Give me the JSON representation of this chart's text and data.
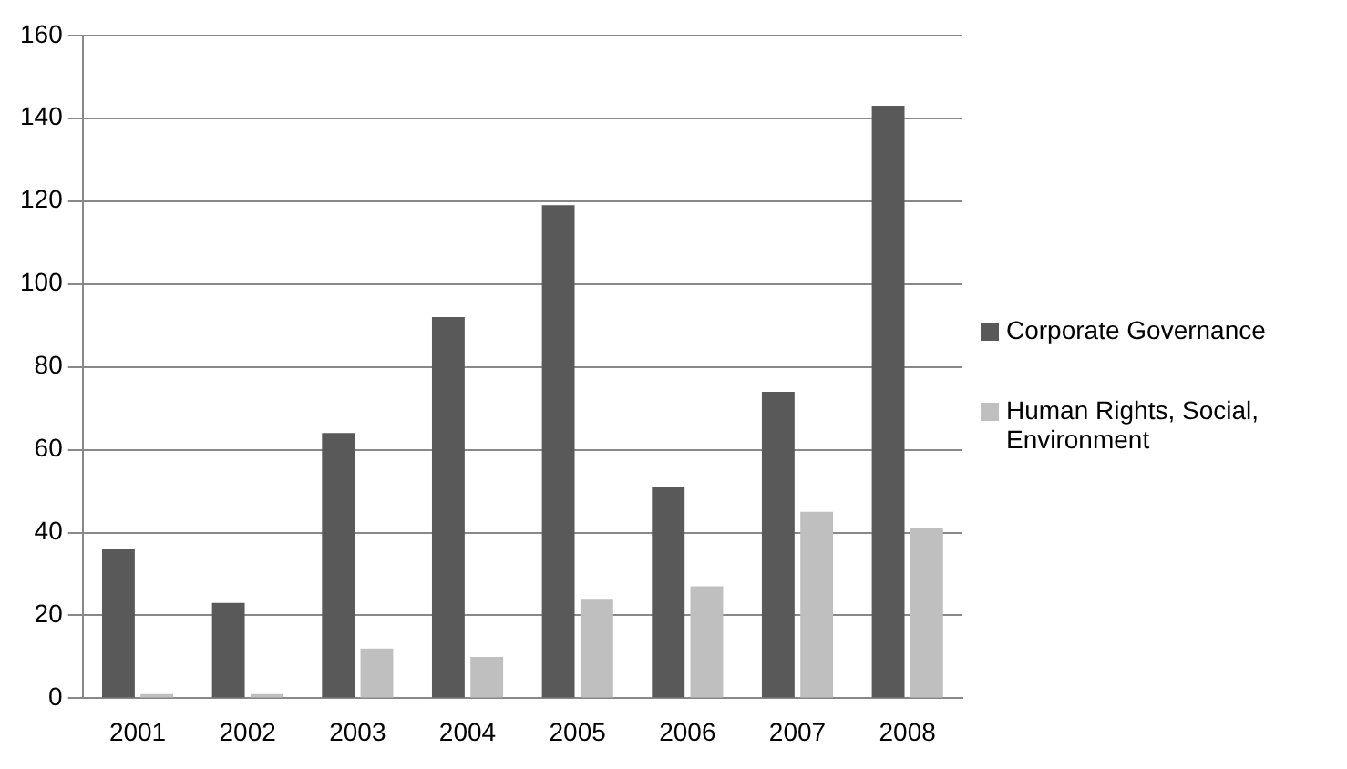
{
  "chart_data": {
    "type": "bar",
    "categories": [
      "2001",
      "2002",
      "2003",
      "2004",
      "2005",
      "2006",
      "2007",
      "2008"
    ],
    "series": [
      {
        "name": "Corporate Governance",
        "color": "#595959",
        "values": [
          36,
          23,
          64,
          92,
          119,
          51,
          74,
          143
        ]
      },
      {
        "name": "Human Rights, Social, Environment",
        "color": "#bfbfbf",
        "values": [
          1,
          1,
          12,
          10,
          24,
          27,
          45,
          41
        ]
      }
    ],
    "ylim": [
      0,
      160
    ],
    "yticks": [
      0,
      20,
      40,
      60,
      80,
      100,
      120,
      140,
      160
    ],
    "grid": "y",
    "legend": "right"
  }
}
